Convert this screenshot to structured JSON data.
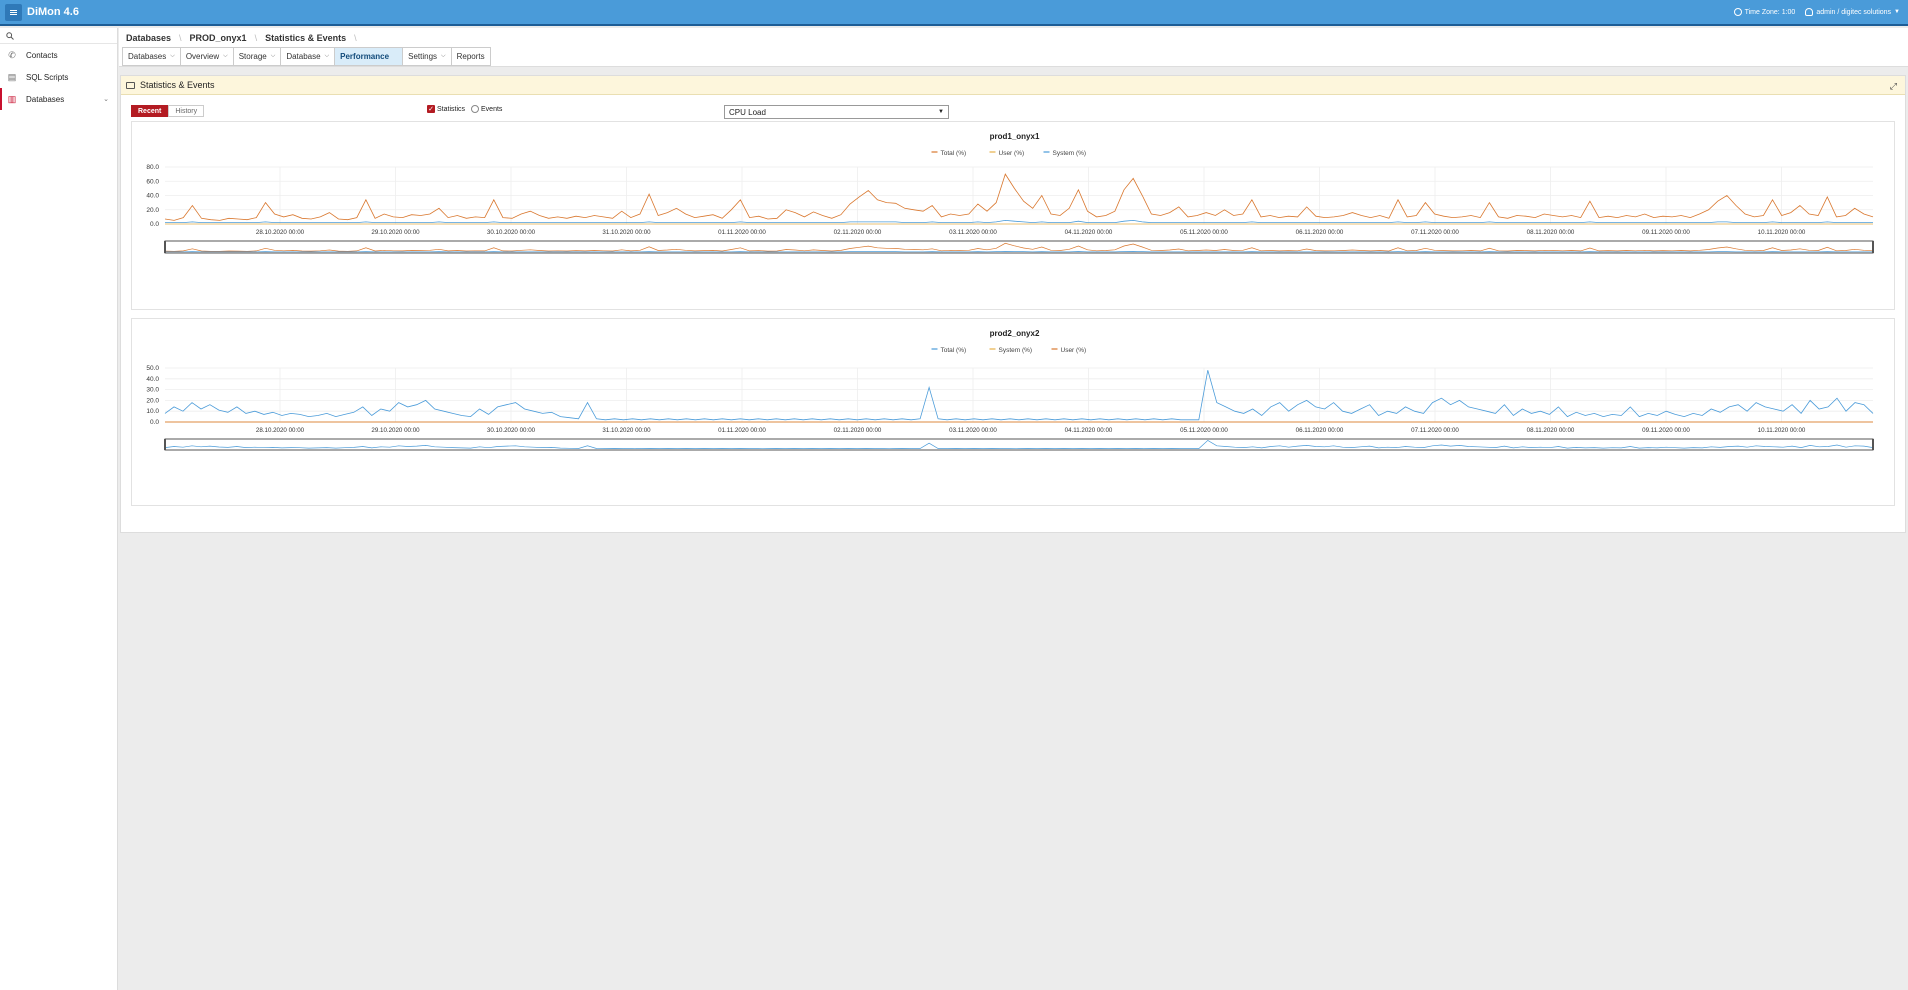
{
  "app": {
    "title": "DiMon 4.6"
  },
  "topbar": {
    "timezone": "Time Zone: 1:00",
    "user": "admin / digitec solutions"
  },
  "sidebar": {
    "search_placeholder": "",
    "items": [
      {
        "label": "Contacts",
        "icon": "phone-icon"
      },
      {
        "label": "SQL Scripts",
        "icon": "script-icon"
      },
      {
        "label": "Databases",
        "icon": "database-icon"
      }
    ]
  },
  "breadcrumb": [
    "Databases",
    "PROD_onyx1",
    "Statistics & Events"
  ],
  "tabs": [
    {
      "label": "Databases",
      "dropdown": true
    },
    {
      "label": "Overview",
      "dropdown": true
    },
    {
      "label": "Storage",
      "dropdown": true
    },
    {
      "label": "Database",
      "dropdown": true
    },
    {
      "label": "Performance",
      "dropdown": false,
      "active": true
    },
    {
      "label": "Settings",
      "dropdown": true
    },
    {
      "label": "Reports",
      "dropdown": false
    }
  ],
  "panel": {
    "title": "Statistics & Events"
  },
  "controls": {
    "recent": "Recent",
    "history": "History",
    "statistics": "Statistics",
    "events": "Events",
    "metric": "CPU Load"
  },
  "chart_data": [
    {
      "type": "line",
      "title": "prod1_onyx1",
      "legend_placement": "top-center",
      "series": [
        {
          "name": "Total (%)",
          "color": "#d9772e",
          "values": [
            7,
            5,
            9,
            26,
            8,
            6,
            5,
            8,
            7,
            6,
            9,
            30,
            14,
            10,
            13,
            8,
            7,
            10,
            16,
            7,
            6,
            9,
            34,
            8,
            14,
            10,
            9,
            13,
            12,
            14,
            22,
            9,
            12,
            8,
            10,
            9,
            34,
            9,
            8,
            14,
            18,
            12,
            8,
            10,
            8,
            11,
            9,
            12,
            10,
            8,
            18,
            9,
            14,
            42,
            12,
            16,
            22,
            14,
            9,
            11,
            13,
            8,
            20,
            34,
            9,
            11,
            7,
            8,
            20,
            16,
            10,
            17,
            12,
            8,
            13,
            28,
            38,
            47,
            34,
            30,
            29,
            22,
            20,
            18,
            26,
            10,
            14,
            12,
            14,
            28,
            18,
            30,
            70,
            50,
            32,
            22,
            40,
            14,
            12,
            22,
            48,
            18,
            10,
            12,
            18,
            48,
            64,
            40,
            14,
            12,
            16,
            24,
            10,
            12,
            16,
            12,
            20,
            12,
            14,
            34,
            10,
            12,
            9,
            11,
            10,
            24,
            11,
            9,
            10,
            12,
            16,
            12,
            9,
            12,
            8,
            34,
            10,
            12,
            30,
            14,
            11,
            9,
            10,
            12,
            9,
            30,
            10,
            8,
            12,
            11,
            9,
            14,
            12,
            10,
            12,
            9,
            32,
            9,
            11,
            9,
            12,
            10,
            14,
            9,
            11,
            10,
            12,
            9,
            14,
            20,
            32,
            40,
            26,
            14,
            10,
            12,
            34,
            12,
            16,
            26,
            14,
            12,
            38,
            10,
            12,
            22,
            14,
            10
          ]
        },
        {
          "name": "User (%)",
          "color": "#e7b14a",
          "values": []
        },
        {
          "name": "System (%)",
          "color": "#4a9bd9",
          "values": [
            2,
            2,
            2,
            3,
            2,
            2,
            2,
            2,
            2,
            2,
            2,
            3,
            2,
            2,
            2,
            2,
            2,
            2,
            2,
            2,
            2,
            2,
            3,
            2,
            2,
            2,
            2,
            2,
            2,
            2,
            3,
            2,
            2,
            2,
            2,
            2,
            3,
            2,
            2,
            2,
            2,
            2,
            2,
            2,
            2,
            2,
            2,
            2,
            2,
            2,
            2,
            2,
            2,
            3,
            2,
            2,
            2,
            2,
            2,
            2,
            2,
            2,
            2,
            3,
            2,
            2,
            2,
            2,
            2,
            2,
            2,
            2,
            2,
            2,
            2,
            3,
            3,
            3,
            3,
            3,
            3,
            2,
            2,
            2,
            3,
            2,
            2,
            2,
            2,
            3,
            2,
            3,
            5,
            4,
            3,
            2,
            3,
            2,
            2,
            2,
            4,
            2,
            2,
            2,
            2,
            4,
            5,
            3,
            2,
            2,
            2,
            2,
            2,
            2,
            2,
            2,
            2,
            2,
            2,
            3,
            2,
            2,
            2,
            2,
            2,
            2,
            2,
            2,
            2,
            2,
            2,
            2,
            2,
            2,
            2,
            3,
            2,
            2,
            3,
            2,
            2,
            2,
            2,
            2,
            2,
            3,
            2,
            2,
            2,
            2,
            2,
            2,
            2,
            2,
            2,
            2,
            3,
            2,
            2,
            2,
            2,
            2,
            2,
            2,
            2,
            2,
            2,
            2,
            2,
            2,
            3,
            3,
            2,
            2,
            2,
            2,
            3,
            2,
            2,
            2,
            2,
            2,
            3,
            2,
            2,
            2,
            2,
            2
          ]
        }
      ],
      "y_ticks": [
        "80.0",
        "60.0",
        "40.0",
        "20.0",
        "0.0"
      ],
      "ylim": [
        0,
        80
      ],
      "x_ticks": [
        "28.10.2020 00:00",
        "29.10.2020 00:00",
        "30.10.2020 00:00",
        "31.10.2020 00:00",
        "01.11.2020 00:00",
        "02.11.2020 00:00",
        "03.11.2020 00:00",
        "04.11.2020 00:00",
        "05.11.2020 00:00",
        "06.11.2020 00:00",
        "07.11.2020 00:00",
        "08.11.2020 00:00",
        "09.11.2020 00:00",
        "10.11.2020 00:00"
      ],
      "grid": true,
      "navigator": true
    },
    {
      "type": "line",
      "title": "prod2_onyx2",
      "legend_placement": "top-center",
      "series": [
        {
          "name": "Total (%)",
          "color": "#4a9bd9",
          "values": [
            8,
            14,
            10,
            18,
            12,
            16,
            11,
            9,
            14,
            8,
            10,
            7,
            9,
            6,
            8,
            7,
            5,
            6,
            8,
            5,
            7,
            9,
            14,
            6,
            12,
            10,
            18,
            14,
            16,
            20,
            12,
            10,
            8,
            6,
            5,
            12,
            7,
            14,
            16,
            18,
            12,
            10,
            8,
            9,
            5,
            4,
            3,
            18,
            3,
            2,
            3,
            2,
            3,
            2,
            3,
            2,
            3,
            2,
            3,
            2,
            3,
            2,
            3,
            2,
            3,
            2,
            3,
            2,
            3,
            2,
            3,
            2,
            3,
            2,
            3,
            2,
            3,
            2,
            3,
            2,
            3,
            2,
            3,
            2,
            3,
            32,
            3,
            2,
            3,
            2,
            3,
            2,
            3,
            2,
            3,
            2,
            3,
            2,
            3,
            2,
            3,
            2,
            3,
            2,
            3,
            2,
            3,
            2,
            3,
            2,
            3,
            2,
            3,
            2,
            2,
            2,
            48,
            18,
            14,
            10,
            8,
            12,
            6,
            14,
            18,
            10,
            16,
            20,
            14,
            12,
            18,
            10,
            8,
            12,
            16,
            6,
            10,
            8,
            14,
            10,
            8,
            18,
            22,
            16,
            20,
            14,
            12,
            10,
            8,
            16,
            6,
            12,
            8,
            10,
            7,
            14,
            5,
            9,
            6,
            8,
            5,
            7,
            6,
            14,
            5,
            8,
            6,
            10,
            7,
            5,
            8,
            6,
            12,
            9,
            14,
            16,
            10,
            18,
            14,
            12,
            10,
            16,
            8,
            20,
            12,
            14,
            22,
            10,
            18,
            16,
            8
          ]
        },
        {
          "name": "System (%)",
          "color": "#e7b14a",
          "values": []
        },
        {
          "name": "User (%)",
          "color": "#d9772e",
          "values": []
        }
      ],
      "y_ticks": [
        "50.0",
        "40.0",
        "30.0",
        "20.0",
        "10.0",
        "0.0"
      ],
      "ylim": [
        0,
        50
      ],
      "x_ticks": [
        "28.10.2020 00:00",
        "29.10.2020 00:00",
        "30.10.2020 00:00",
        "31.10.2020 00:00",
        "01.11.2020 00:00",
        "02.11.2020 00:00",
        "03.11.2020 00:00",
        "04.11.2020 00:00",
        "05.11.2020 00:00",
        "06.11.2020 00:00",
        "07.11.2020 00:00",
        "08.11.2020 00:00",
        "09.11.2020 00:00",
        "10.11.2020 00:00"
      ],
      "grid": true,
      "navigator": true
    }
  ]
}
